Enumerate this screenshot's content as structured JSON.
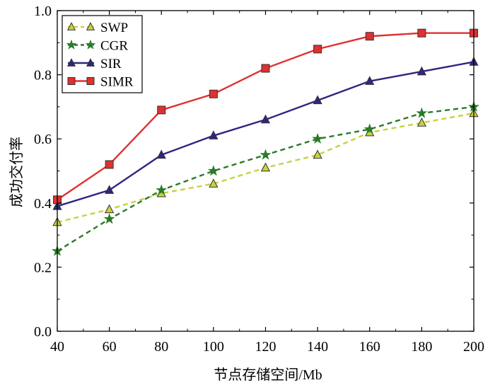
{
  "chart_data": {
    "type": "line",
    "title": "",
    "xlabel": "节点存储空间/Mb",
    "ylabel": "成功交付率",
    "x": [
      40,
      60,
      80,
      100,
      120,
      140,
      160,
      180,
      200
    ],
    "xlim": [
      40,
      200
    ],
    "ylim": [
      0.0,
      1.0
    ],
    "xticks": [
      40,
      60,
      80,
      100,
      120,
      140,
      160,
      180,
      200
    ],
    "yticks": [
      "0.0",
      "0.2",
      "0.4",
      "0.6",
      "0.8",
      "1.0"
    ],
    "grid": false,
    "legend_position": "top-left",
    "series": [
      {
        "name": "SWP",
        "color": "#c8d23c",
        "marker": "triangle",
        "dash": true,
        "values": [
          0.34,
          0.38,
          0.43,
          0.46,
          0.51,
          0.55,
          0.62,
          0.65,
          0.68
        ]
      },
      {
        "name": "CGR",
        "color": "#2a7a2a",
        "marker": "star",
        "dash": true,
        "values": [
          0.25,
          0.35,
          0.44,
          0.5,
          0.55,
          0.6,
          0.63,
          0.68,
          0.7
        ]
      },
      {
        "name": "SIR",
        "color": "#2e2680",
        "marker": "triangle",
        "dash": false,
        "values": [
          0.39,
          0.44,
          0.55,
          0.61,
          0.66,
          0.72,
          0.78,
          0.81,
          0.84
        ]
      },
      {
        "name": "SIMR",
        "color": "#e03030",
        "marker": "square",
        "dash": false,
        "values": [
          0.41,
          0.52,
          0.69,
          0.74,
          0.82,
          0.88,
          0.92,
          0.93,
          0.93
        ]
      }
    ]
  }
}
